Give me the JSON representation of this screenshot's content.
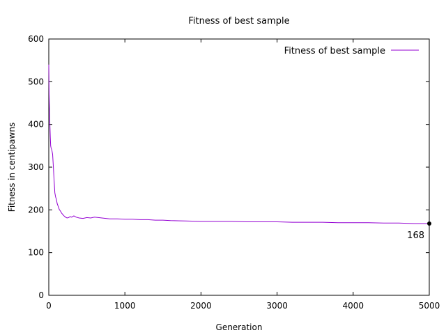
{
  "chart_data": {
    "type": "line",
    "title": "Fitness of best sample",
    "xlabel": "Generation",
    "ylabel": "Fitness in centipawns",
    "xlim": [
      0,
      5000
    ],
    "ylim": [
      0,
      600
    ],
    "xticks": [
      0,
      1000,
      2000,
      3000,
      4000,
      5000
    ],
    "yticks": [
      0,
      100,
      200,
      300,
      400,
      500,
      600
    ],
    "grid": false,
    "legend_position": "top-right",
    "series": [
      {
        "name": "Fitness of best sample",
        "color": "#9400d3",
        "x": [
          0,
          5,
          10,
          15,
          20,
          25,
          30,
          40,
          50,
          60,
          70,
          80,
          90,
          100,
          110,
          120,
          130,
          140,
          150,
          160,
          170,
          180,
          190,
          200,
          220,
          240,
          260,
          280,
          300,
          330,
          360,
          400,
          450,
          500,
          550,
          600,
          650,
          700,
          750,
          800,
          900,
          1000,
          1100,
          1200,
          1300,
          1400,
          1500,
          1600,
          1800,
          2000,
          2200,
          2400,
          2600,
          2800,
          3000,
          3200,
          3400,
          3600,
          3800,
          4000,
          4200,
          4400,
          4600,
          4800,
          5000
        ],
        "y": [
          540,
          470,
          430,
          400,
          370,
          350,
          345,
          340,
          330,
          300,
          270,
          240,
          230,
          225,
          215,
          210,
          205,
          200,
          198,
          195,
          192,
          190,
          188,
          186,
          183,
          181,
          182,
          184,
          183,
          186,
          183,
          181,
          180,
          182,
          181,
          183,
          182,
          181,
          180,
          179,
          179,
          178,
          178,
          177,
          177,
          176,
          176,
          175,
          174,
          173,
          173,
          173,
          172,
          172,
          172,
          171,
          171,
          171,
          170,
          170,
          170,
          169,
          169,
          168,
          168
        ]
      }
    ],
    "annotations": [
      {
        "text": "168",
        "x": 5000,
        "y": 168
      }
    ]
  }
}
